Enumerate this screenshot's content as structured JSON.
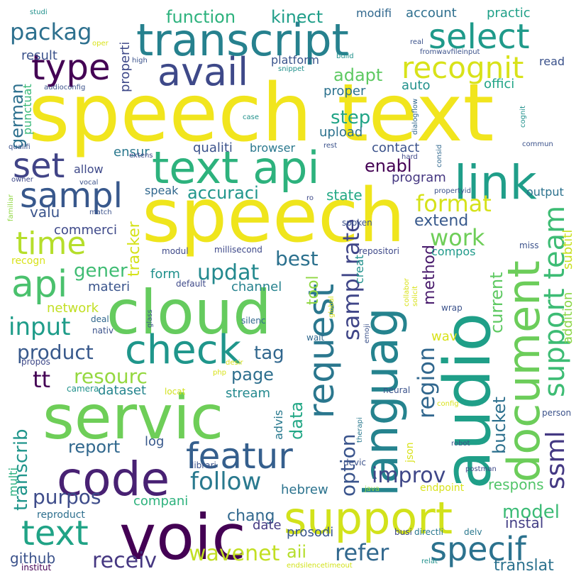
{
  "words": [
    {
      "text": "speech text",
      "color": "#f1e51d"
    },
    {
      "text": "speech",
      "color": "#efe51c"
    },
    {
      "text": "transcript",
      "color": "#26818e"
    },
    {
      "text": "voic",
      "color": "#440154"
    },
    {
      "text": "servic",
      "color": "#6ece58"
    },
    {
      "text": "audio",
      "color": "#1f9f88"
    },
    {
      "text": "cloud",
      "color": "#65cb5e"
    },
    {
      "text": "languag",
      "color": "#25838e"
    },
    {
      "text": "document",
      "color": "#6ccd5a"
    },
    {
      "text": "text api",
      "color": "#2db27d"
    },
    {
      "text": "link",
      "color": "#1f9e89"
    },
    {
      "text": "code",
      "color": "#482173"
    },
    {
      "text": "support",
      "color": "#d2e21b"
    },
    {
      "text": "check",
      "color": "#1f968b"
    },
    {
      "text": "avail",
      "color": "#3e4989"
    },
    {
      "text": "select",
      "color": "#1f9a8a"
    },
    {
      "text": "request",
      "color": "#2a778e"
    },
    {
      "text": "featur",
      "color": "#355f8d"
    },
    {
      "text": "text",
      "color": "#20a386"
    },
    {
      "text": "api",
      "color": "#4ac16d"
    },
    {
      "text": "support team",
      "color": "#3dbc74"
    },
    {
      "text": "sampl",
      "color": "#38588c"
    },
    {
      "text": "set",
      "color": "#414487"
    },
    {
      "text": "type",
      "color": "#440154"
    },
    {
      "text": "specif",
      "color": "#2c728e"
    },
    {
      "text": "time",
      "color": "#b5de2b"
    },
    {
      "text": "recognit",
      "color": "#d8e219"
    },
    {
      "text": "sampl rate",
      "color": "#404688"
    },
    {
      "text": "ssml",
      "color": "#443983"
    },
    {
      "text": "improv",
      "color": "#3f4788"
    },
    {
      "text": "follow",
      "color": "#29798e"
    },
    {
      "text": "packag",
      "color": "#2d708e"
    },
    {
      "text": "refer",
      "color": "#31688e"
    },
    {
      "text": "region",
      "color": "#31678e"
    },
    {
      "text": "input",
      "color": "#1e9c89"
    },
    {
      "text": "product",
      "color": "#38598c"
    },
    {
      "text": "wavenet",
      "color": "#c2df23"
    },
    {
      "text": "receiv",
      "color": "#453781"
    },
    {
      "text": "model",
      "color": "#3bbb75"
    },
    {
      "text": "option",
      "color": "#3a548c"
    },
    {
      "text": "work",
      "color": "#6ece58"
    },
    {
      "text": "format",
      "color": "#d5e21a"
    },
    {
      "text": "updat",
      "color": "#23898e"
    },
    {
      "text": "resourc",
      "color": "#95d840"
    },
    {
      "text": "purpos",
      "color": "#3e4c8a"
    },
    {
      "text": "transcrib",
      "color": "#1f958b"
    },
    {
      "text": "current",
      "color": "#5ec962"
    },
    {
      "text": "bucket",
      "color": "#2d708e"
    },
    {
      "text": "tag",
      "color": "#31678e"
    },
    {
      "text": "tt",
      "color": "#440154"
    },
    {
      "text": "data",
      "color": "#22a785"
    },
    {
      "text": "best",
      "color": "#2c718e"
    },
    {
      "text": "accuraci",
      "color": "#1f968b"
    },
    {
      "text": "report",
      "color": "#31688e"
    },
    {
      "text": "page",
      "color": "#2e6f8e"
    },
    {
      "text": "gener",
      "color": "#3fbc73"
    },
    {
      "text": "german",
      "color": "#2d708e"
    },
    {
      "text": "step",
      "color": "#20a486"
    },
    {
      "text": "enabl",
      "color": "#440154"
    },
    {
      "text": "adapt",
      "color": "#5ec962"
    },
    {
      "text": "function",
      "color": "#2db27d"
    },
    {
      "text": "kinect",
      "color": "#1f9e89"
    },
    {
      "text": "aii",
      "color": "#b5de2b"
    },
    {
      "text": "chang",
      "color": "#31688e"
    },
    {
      "text": "tracker",
      "color": "#d5e21a"
    },
    {
      "text": "method",
      "color": "#481a6c"
    },
    {
      "text": "tool",
      "color": "#90d743"
    },
    {
      "text": "translat",
      "color": "#2c728e"
    },
    {
      "text": "respons",
      "color": "#52c569"
    },
    {
      "text": "instal",
      "color": "#433e85"
    },
    {
      "text": "extend",
      "color": "#38598c"
    },
    {
      "text": "hebrew",
      "color": "#2c738e"
    },
    {
      "text": "compani",
      "color": "#2db27d"
    },
    {
      "text": "github",
      "color": "#3b528b"
    },
    {
      "text": "addition",
      "color": "#8bd646"
    },
    {
      "text": "subtitl",
      "color": "#c8e020"
    },
    {
      "text": "form",
      "color": "#21918c"
    },
    {
      "text": "state",
      "color": "#22a884"
    },
    {
      "text": "valu",
      "color": "#3a548c"
    },
    {
      "text": "commerci",
      "color": "#3e4989"
    },
    {
      "text": "materi",
      "color": "#3a548c"
    },
    {
      "text": "channel",
      "color": "#26828e"
    },
    {
      "text": "dataset",
      "color": "#25858e"
    },
    {
      "text": "network",
      "color": "#c2df23"
    },
    {
      "text": "stream",
      "color": "#23898e"
    },
    {
      "text": "advis",
      "color": "#29798e"
    },
    {
      "text": "date",
      "color": "#443a83"
    },
    {
      "text": "prosodi",
      "color": "#39568c"
    },
    {
      "text": "log",
      "color": "#38598c"
    },
    {
      "text": "upload",
      "color": "#2c728e"
    },
    {
      "text": "contact",
      "color": "#3b528b"
    },
    {
      "text": "program",
      "color": "#453781"
    },
    {
      "text": "output",
      "color": "#2c728e"
    },
    {
      "text": "compos",
      "color": "#1f9a8a"
    },
    {
      "text": "wav",
      "color": "#d8e219"
    },
    {
      "text": "auto",
      "color": "#21918c"
    },
    {
      "text": "offici",
      "color": "#20a486"
    },
    {
      "text": "proper",
      "color": "#2c728e"
    },
    {
      "text": "browser",
      "color": "#2a788e"
    },
    {
      "text": "qualiti",
      "color": "#3b528b"
    },
    {
      "text": "ensur",
      "color": "#2a788e"
    },
    {
      "text": "allow",
      "color": "#3e4989"
    },
    {
      "text": "speak",
      "color": "#31688e"
    },
    {
      "text": "result",
      "color": "#3b528b"
    },
    {
      "text": "properti",
      "color": "#3e4989"
    },
    {
      "text": "modifi",
      "color": "#31688e"
    },
    {
      "text": "account",
      "color": "#2e6f8e"
    },
    {
      "text": "practic",
      "color": "#1fa088"
    },
    {
      "text": "platform",
      "color": "#3a548c"
    },
    {
      "text": "read",
      "color": "#3b528b"
    },
    {
      "text": "punctuat",
      "color": "#37b878"
    },
    {
      "text": "recogn",
      "color": "#d8e219"
    },
    {
      "text": "multi",
      "color": "#29af7f"
    },
    {
      "text": "reproduct",
      "color": "#2e6f8e"
    },
    {
      "text": "institut",
      "color": "#440154"
    },
    {
      "text": "endpoint",
      "color": "#d8e219"
    },
    {
      "text": "librari",
      "color": "#3b528b"
    },
    {
      "text": "devic",
      "color": "#3b528b"
    },
    {
      "text": "busi",
      "color": "#3e4989"
    },
    {
      "text": "directli",
      "color": "#2a788e"
    },
    {
      "text": "delv",
      "color": "#2a788e"
    },
    {
      "text": "relat",
      "color": "#21918c"
    },
    {
      "text": "endsilencetimeout",
      "color": "#d2e21b"
    },
    {
      "text": "postman",
      "color": "#3e4989"
    },
    {
      "text": "robot",
      "color": "#3b528b"
    },
    {
      "text": "person",
      "color": "#3b528b"
    },
    {
      "text": "java",
      "color": "#90d743"
    },
    {
      "text": "json",
      "color": "#d8e219"
    },
    {
      "text": "therapi",
      "color": "#2a788e"
    },
    {
      "text": "neural",
      "color": "#3b528b"
    },
    {
      "text": "config",
      "color": "#d8e219"
    },
    {
      "text": "wrap",
      "color": "#3b528b"
    },
    {
      "text": "miss",
      "color": "#3b528b"
    },
    {
      "text": "repositori",
      "color": "#3e4989"
    },
    {
      "text": "millisecond",
      "color": "#3e4989"
    },
    {
      "text": "modul",
      "color": "#3e4989"
    },
    {
      "text": "default",
      "color": "#3e4989"
    },
    {
      "text": "glass",
      "color": "#3b528b"
    },
    {
      "text": "deal",
      "color": "#31688e"
    },
    {
      "text": "nativ",
      "color": "#3b528b"
    },
    {
      "text": "propos",
      "color": "#3e4989"
    },
    {
      "text": "camera",
      "color": "#21918c"
    },
    {
      "text": "locat",
      "color": "#d2e21b"
    },
    {
      "text": "desir",
      "color": "#d8e219"
    },
    {
      "text": "php",
      "color": "#d8e219"
    },
    {
      "text": "silenc",
      "color": "#31688e"
    },
    {
      "text": "wait",
      "color": "#31688e"
    },
    {
      "text": "emoji",
      "color": "#3b528b"
    },
    {
      "text": "global",
      "color": "#d8e219"
    },
    {
      "text": "solicit",
      "color": "#d8e219"
    },
    {
      "text": "collabor",
      "color": "#d8e219"
    },
    {
      "text": "creat",
      "color": "#21918c"
    },
    {
      "text": "spoken",
      "color": "#3b528b"
    },
    {
      "text": "ro",
      "color": "#3e4989"
    },
    {
      "text": "propertyid",
      "color": "#3b528b"
    },
    {
      "text": "consid",
      "color": "#31688e"
    },
    {
      "text": "commun",
      "color": "#3b528b"
    },
    {
      "text": "cognit",
      "color": "#21918c"
    },
    {
      "text": "hard",
      "color": "#3e4989"
    },
    {
      "text": "rest",
      "color": "#3b528b"
    },
    {
      "text": "case",
      "color": "#21918c"
    },
    {
      "text": "dialogflow",
      "color": "#31688e"
    },
    {
      "text": "fromwavfileinput",
      "color": "#3b528b"
    },
    {
      "text": "snippet",
      "color": "#21918c"
    },
    {
      "text": "build",
      "color": "#21918c"
    },
    {
      "text": "real",
      "color": "#3b528b"
    },
    {
      "text": "high",
      "color": "#3b528b"
    },
    {
      "text": "oper",
      "color": "#d8e219"
    },
    {
      "text": "studi",
      "color": "#21918c"
    },
    {
      "text": "audioconfig",
      "color": "#3b528b"
    },
    {
      "text": "qualifi",
      "color": "#3b528b"
    },
    {
      "text": "extens",
      "color": "#3e4989"
    },
    {
      "text": "owner",
      "color": "#3e4989"
    },
    {
      "text": "vocal",
      "color": "#3b528b"
    },
    {
      "text": "familiar",
      "color": "#90d743"
    },
    {
      "text": "match",
      "color": "#3b528b"
    }
  ]
}
